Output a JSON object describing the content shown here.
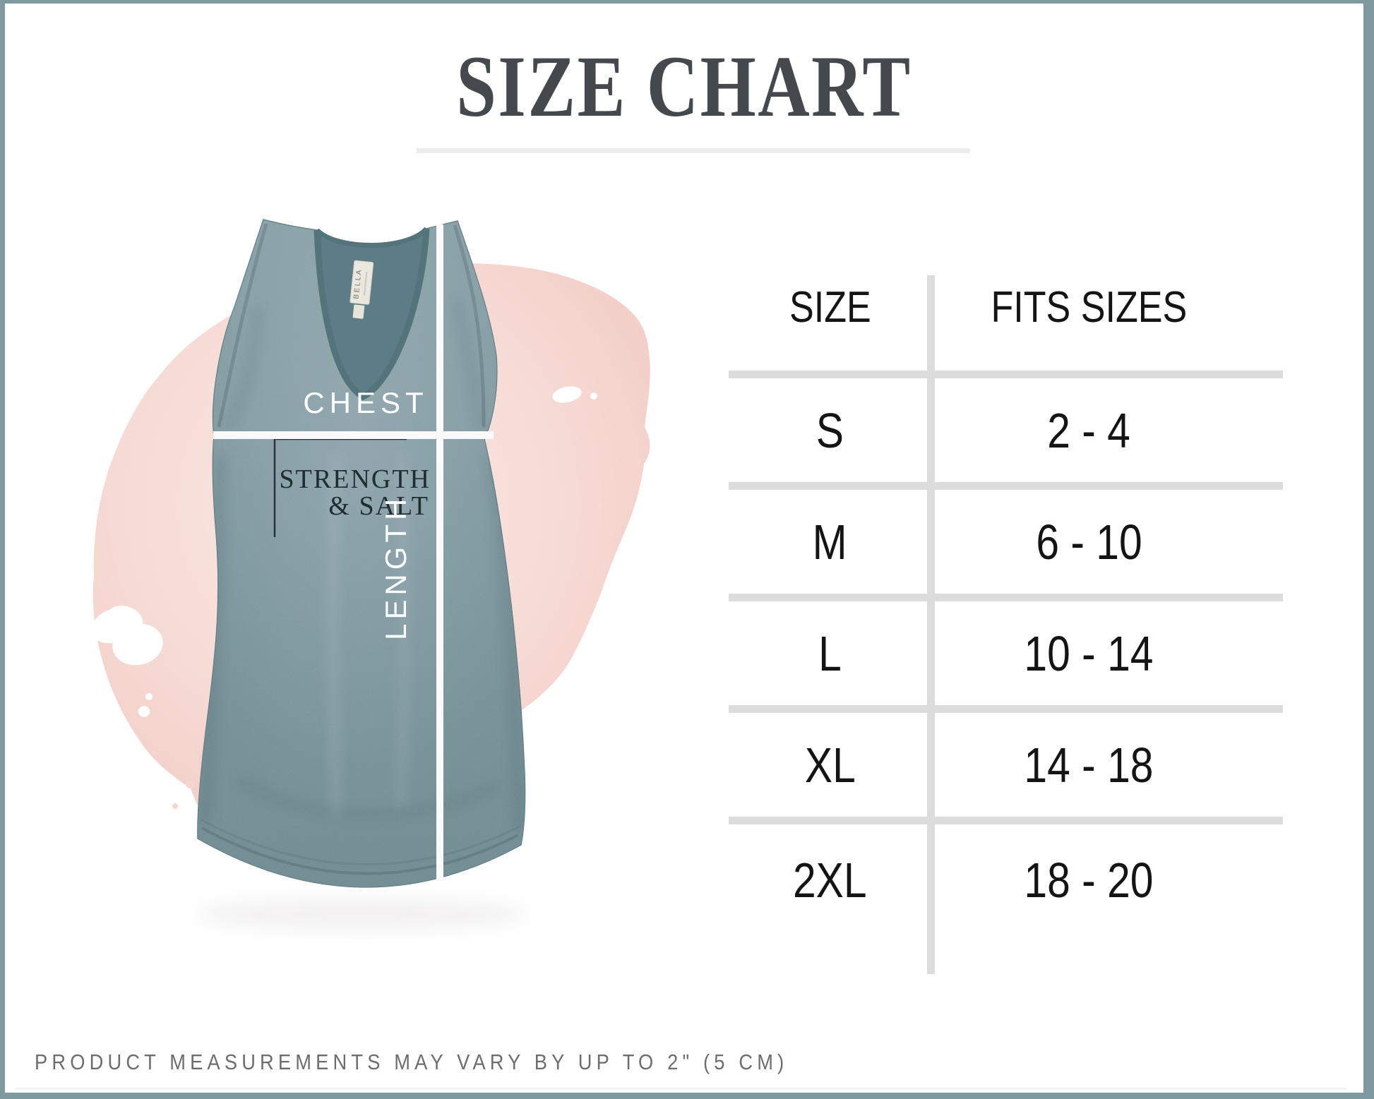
{
  "title": "SIZE CHART",
  "table": {
    "headers": [
      "SIZE",
      "FITS SIZES"
    ],
    "rows": [
      {
        "size": "S",
        "fits": "2 - 4"
      },
      {
        "size": "M",
        "fits": "6 - 10"
      },
      {
        "size": "L",
        "fits": "10 - 14"
      },
      {
        "size": "XL",
        "fits": "14 - 18"
      },
      {
        "size": "2XL",
        "fits": "18 - 20"
      }
    ]
  },
  "product": {
    "chest_label": "CHEST",
    "length_label": "LENGTH",
    "shirt_text_line1": "STRENGTH",
    "shirt_text_line2": "& SALT",
    "tag_brand": "BELLA"
  },
  "footnote": "PRODUCT MEASUREMENTS MAY VARY BY UP TO 2\" (5 CM)",
  "colors": {
    "border": "#7e9aa0",
    "table_line": "#dcdcdc",
    "text_dark": "#141414",
    "title": "#45494e",
    "caption": "#6d6d6d",
    "shirt_teal": "#67868d",
    "splash_pink": "#f5d8d1",
    "measure_line_white": "#fafafa"
  }
}
